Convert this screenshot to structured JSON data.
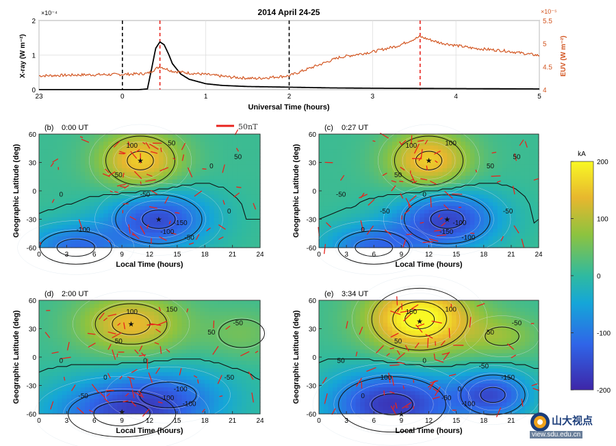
{
  "chart_data": [
    {
      "type": "line",
      "title": "2014 April 24-25",
      "xlabel": "Universal Time (hours)",
      "ylabel_left": "X-ray (W m⁻²)",
      "ylabel_right": "EUV (W m⁻²)",
      "xlim": [
        -1,
        5
      ],
      "x_ticks": [
        "23",
        "0",
        "1",
        "2",
        "3",
        "4",
        "5"
      ],
      "y_left_lim": [
        0,
        2
      ],
      "y_left_ticks": [
        "0",
        "1",
        "2"
      ],
      "y_left_exponent": "×10⁻⁴",
      "y_right_lim": [
        4,
        5.5
      ],
      "y_right_ticks": [
        "4",
        "4.5",
        "5",
        "5.5"
      ],
      "y_right_exponent": "×10⁻⁵",
      "grid": true,
      "vertical_markers": [
        {
          "x": 0.0,
          "color": "#000000",
          "style": "dashed"
        },
        {
          "x": 0.45,
          "color": "#e8221c",
          "style": "dashed"
        },
        {
          "x": 2.0,
          "color": "#000000",
          "style": "dashed"
        },
        {
          "x": 3.57,
          "color": "#e8221c",
          "style": "dashed"
        }
      ],
      "series": [
        {
          "axis": "left",
          "color": "#000000",
          "x": [
            -1,
            0,
            0.2,
            0.3,
            0.35,
            0.4,
            0.45,
            0.5,
            0.55,
            0.6,
            0.7,
            0.8,
            1.0,
            1.2,
            1.5,
            2.0,
            2.5,
            3.0,
            4.0,
            5.0
          ],
          "y": [
            0.0,
            0.0,
            0.0,
            0.02,
            0.6,
            1.2,
            1.38,
            1.3,
            1.05,
            0.75,
            0.45,
            0.3,
            0.17,
            0.12,
            0.09,
            0.07,
            0.05,
            0.04,
            0.03,
            0.02
          ]
        },
        {
          "axis": "right",
          "color": "#d2541f",
          "x": [
            -1,
            -0.5,
            0,
            0.3,
            0.45,
            0.6,
            0.8,
            1.0,
            1.3,
            1.6,
            2.0,
            2.3,
            2.6,
            3.0,
            3.3,
            3.57,
            3.8,
            4.2,
            4.6,
            5.0
          ],
          "y": [
            4.3,
            4.32,
            4.33,
            4.35,
            4.5,
            4.4,
            4.36,
            4.33,
            4.27,
            4.24,
            4.3,
            4.5,
            4.7,
            4.82,
            4.95,
            5.15,
            5.02,
            4.9,
            4.84,
            4.74
          ]
        }
      ]
    },
    {
      "type": "heatmap",
      "panel": "(b)",
      "time": "0:00 UT",
      "xlabel": "Local Time (hours)",
      "ylabel": "Geographic Latitude (deg)",
      "xlim": [
        0,
        24
      ],
      "ylim": [
        -60,
        60
      ],
      "x_ticks": [
        "0",
        "3",
        "6",
        "9",
        "12",
        "15",
        "18",
        "21",
        "24"
      ],
      "y_ticks": [
        "-60",
        "-30",
        "0",
        "30",
        "60"
      ],
      "contour_labels": [
        "100",
        "50",
        "50",
        "0",
        "0",
        "-50",
        "-100",
        "-150",
        "-100",
        "-50",
        "0",
        "50"
      ],
      "vector_scale_label": "50nT"
    },
    {
      "type": "heatmap",
      "panel": "(c)",
      "time": "0:27 UT",
      "xlabel": "Local Time (hours)",
      "ylabel": "Geographic Latitude (deg)",
      "xlim": [
        0,
        24
      ],
      "ylim": [
        -60,
        60
      ],
      "x_ticks": [
        "0",
        "3",
        "6",
        "9",
        "12",
        "15",
        "18",
        "21",
        "24"
      ],
      "y_ticks": [
        "-60",
        "-30",
        "0",
        "30",
        "60"
      ],
      "contour_labels": [
        "100",
        "100",
        "50",
        "50",
        "-50",
        "0",
        "0",
        "-100",
        "-150",
        "-100",
        "-50",
        "50",
        "-50"
      ]
    },
    {
      "type": "heatmap",
      "panel": "(d)",
      "time": "2:00 UT",
      "xlabel": "Local Time (hours)",
      "ylabel": "Geographic Latitude (deg)",
      "xlim": [
        0,
        24
      ],
      "ylim": [
        -60,
        60
      ],
      "x_ticks": [
        "0",
        "3",
        "6",
        "9",
        "12",
        "15",
        "18",
        "21",
        "24"
      ],
      "y_ticks": [
        "-60",
        "-30",
        "0",
        "30",
        "60"
      ],
      "contour_labels": [
        "100",
        "150",
        "50",
        "50",
        "0",
        "0",
        "-50",
        "-100",
        "-100",
        "-100",
        "-50",
        "-50",
        "0"
      ]
    },
    {
      "type": "heatmap",
      "panel": "(e)",
      "time": "3:34 UT",
      "xlabel": "Local Time (hours)",
      "ylabel": "Geographic Latitude (deg)",
      "xlim": [
        0,
        24
      ],
      "ylim": [
        -60,
        60
      ],
      "x_ticks": [
        "0",
        "3",
        "6",
        "9",
        "12",
        "15",
        "18",
        "21"
      ],
      "y_ticks": [
        "-60",
        "-30",
        "0",
        "30",
        "60"
      ],
      "contour_labels": [
        "150",
        "100",
        "50",
        "50",
        "50",
        "0",
        "0",
        "0",
        "-50",
        "-100",
        "-150",
        "-50",
        "-100",
        "-50"
      ]
    },
    {
      "type": "colorbar",
      "label": "kA",
      "range": [
        -200,
        200
      ],
      "ticks": [
        "200",
        "100",
        "0",
        "-100",
        "-200"
      ],
      "colormap": [
        "#3e26a8",
        "#2f65e8",
        "#15a6d8",
        "#2fbaa0",
        "#8dc33f",
        "#e7b72e",
        "#f9f824"
      ]
    }
  ],
  "watermark": {
    "text": "山大视点",
    "url": "view.sdu.edu.cn"
  }
}
